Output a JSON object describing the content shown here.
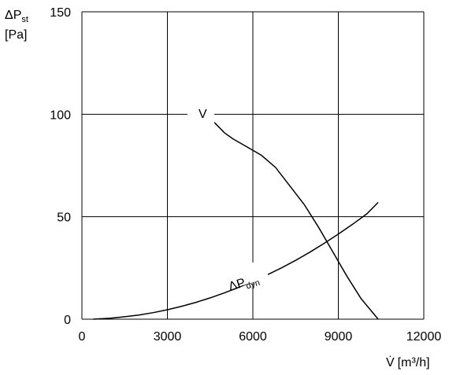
{
  "chart_data": {
    "type": "line",
    "y_title": {
      "symbol": "ΔP",
      "subscript": "st",
      "unit": "[Pa]"
    },
    "x_title": {
      "symbol": "V̇",
      "unit": "[m³/h]"
    },
    "xlim": [
      0,
      12000
    ],
    "ylim": [
      0,
      150
    ],
    "x_ticks": [
      "0",
      "3000",
      "6000",
      "9000",
      "12000"
    ],
    "y_ticks": [
      "0",
      "50",
      "100",
      "150"
    ],
    "grid": true,
    "series": [
      {
        "name": "V",
        "x": [
          4650,
          5000,
          5300,
          5800,
          6300,
          6800,
          7300,
          7800,
          8300,
          8800,
          9300,
          9800,
          10400
        ],
        "y": [
          96,
          91,
          88,
          84,
          80,
          74,
          65,
          56,
          45,
          33,
          21,
          10,
          0
        ]
      },
      {
        "name": "ΔP",
        "name_subscript": "dyn",
        "x": [
          400,
          1000,
          1500,
          2000,
          2500,
          3000,
          3500,
          4000,
          4500,
          5000,
          5500,
          6000,
          6500,
          7000,
          7500,
          8000,
          8500,
          9000,
          9500,
          10000,
          10400
        ],
        "y": [
          0,
          0.5,
          1.2,
          2,
          3.2,
          4.6,
          6.3,
          8.2,
          10.4,
          12.8,
          15.5,
          18.4,
          21.6,
          25,
          28.7,
          32.7,
          37,
          41.5,
          46.3,
          51.4,
          57
        ]
      }
    ]
  }
}
